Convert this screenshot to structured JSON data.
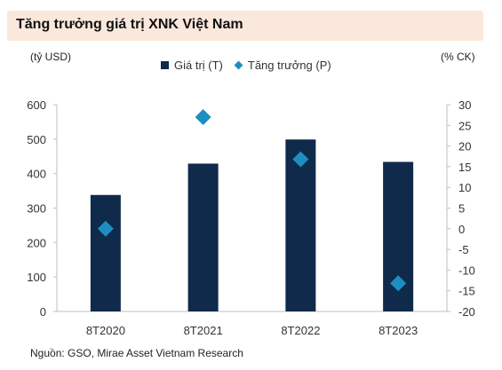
{
  "title": "Tăng trưởng giá trị XNK Việt Nam",
  "unit_left": "(tỷ USD)",
  "unit_right": "(% CK)",
  "source": "Nguồn: GSO, Mirae Asset Vietnam Research",
  "colors": {
    "bar": "#0f2a4a",
    "marker": "#1c8fc0",
    "title_bg": "#fbe8dc"
  },
  "chart_data": {
    "type": "bar",
    "categories": [
      "8T2020",
      "8T2021",
      "8T2022",
      "8T2023"
    ],
    "series": [
      {
        "name": "Giá trị (T)",
        "kind": "bar",
        "axis": "left",
        "values": [
          338,
          429,
          499,
          434
        ]
      },
      {
        "name": "Tăng trưởng (P)",
        "kind": "scatter",
        "axis": "right",
        "values": [
          0,
          27,
          16.8,
          -13.2
        ]
      }
    ],
    "y_left": {
      "min": 0,
      "max": 600,
      "ticks": [
        0,
        100,
        200,
        300,
        400,
        500,
        600
      ]
    },
    "y_right": {
      "min": -20,
      "max": 30,
      "ticks": [
        -20,
        -15,
        -10,
        -5,
        0,
        5,
        10,
        15,
        20,
        25,
        30
      ]
    },
    "legend": "top-center",
    "grid": false
  }
}
